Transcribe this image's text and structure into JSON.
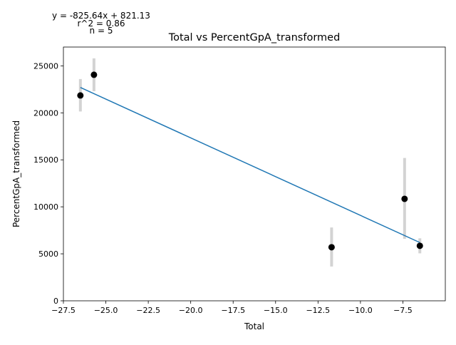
{
  "chart_data": {
    "type": "scatter",
    "title": "Total vs PercentGpA_transformed",
    "xlabel": "Total",
    "ylabel": "PercentGpA_transformed",
    "xlim": [
      -27.5,
      -5.0
    ],
    "ylim": [
      0,
      27000
    ],
    "xticks": [
      -27.5,
      -25.0,
      -22.5,
      -20.0,
      -17.5,
      -15.0,
      -12.5,
      -10.0,
      -7.5
    ],
    "xtick_labels": [
      "−27.5",
      "−25.0",
      "−22.5",
      "−20.0",
      "−17.5",
      "−15.0",
      "−12.5",
      "−10.0",
      "−7.5"
    ],
    "yticks": [
      0,
      5000,
      10000,
      15000,
      20000,
      25000
    ],
    "ytick_labels": [
      "0",
      "5000",
      "10000",
      "15000",
      "20000",
      "25000"
    ],
    "grid": false,
    "points": [
      {
        "x": -26.5,
        "y": 21850,
        "err_low": 20150,
        "err_high": 23600
      },
      {
        "x": -25.7,
        "y": 24050,
        "err_low": 22300,
        "err_high": 25800
      },
      {
        "x": -11.7,
        "y": 5700,
        "err_low": 3650,
        "err_high": 7800
      },
      {
        "x": -7.4,
        "y": 10850,
        "err_low": 6600,
        "err_high": 15200
      },
      {
        "x": -6.5,
        "y": 5850,
        "err_low": 5050,
        "err_high": 6650
      }
    ],
    "fit_line": {
      "x": [
        -26.5,
        -6.5
      ],
      "y": [
        22700,
        6200
      ]
    },
    "annotations": {
      "equation": "y = -825.64x + 821.13",
      "r2": "r^2 = 0.86",
      "n": "n = 5"
    },
    "colors": {
      "points": "#000000",
      "fit": "#1f77b4",
      "errorbars": "#d3d3d3"
    }
  }
}
